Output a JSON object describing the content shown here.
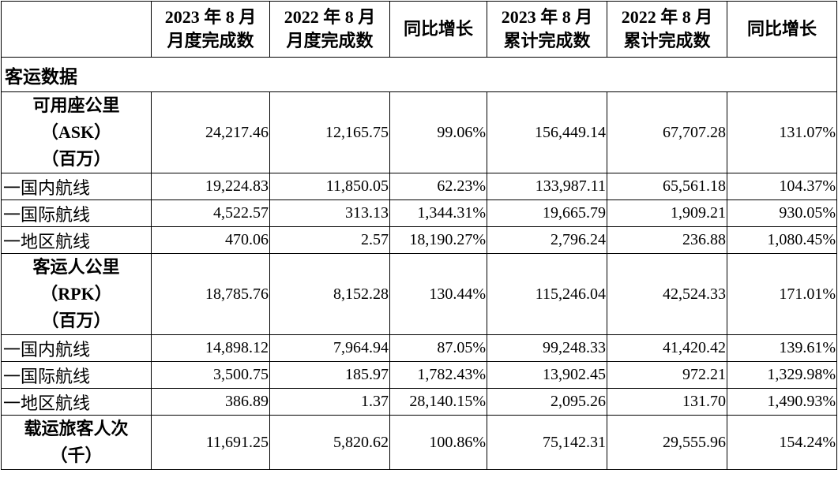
{
  "header": {
    "corner": "",
    "columns": [
      [
        "2023 年 8 月",
        "月度完成数"
      ],
      [
        "2022 年 8 月",
        "月度完成数"
      ],
      [
        "同比增长"
      ],
      [
        "2023 年 8 月",
        "累计完成数"
      ],
      [
        "2022 年 8 月",
        "累计完成数"
      ],
      [
        "同比增长"
      ]
    ]
  },
  "section_title": "客运数据",
  "rows": [
    {
      "label": [
        "可用座公里",
        "（ASK）",
        "（百万）"
      ],
      "values": [
        "24,217.46",
        "12,165.75",
        "99.06%",
        "156,449.14",
        "67,707.28",
        "131.07%"
      ]
    },
    {
      "label": [
        "一国内航线"
      ],
      "values": [
        "19,224.83",
        "11,850.05",
        "62.23%",
        "133,987.11",
        "65,561.18",
        "104.37%"
      ]
    },
    {
      "label": [
        "一国际航线"
      ],
      "values": [
        "4,522.57",
        "313.13",
        "1,344.31%",
        "19,665.79",
        "1,909.21",
        "930.05%"
      ]
    },
    {
      "label": [
        "一地区航线"
      ],
      "values": [
        "470.06",
        "2.57",
        "18,190.27%",
        "2,796.24",
        "236.88",
        "1,080.45%"
      ]
    },
    {
      "label": [
        "客运人公里",
        "（RPK）",
        "（百万）"
      ],
      "values": [
        "18,785.76",
        "8,152.28",
        "130.44%",
        "115,246.04",
        "42,524.33",
        "171.01%"
      ]
    },
    {
      "label": [
        "一国内航线"
      ],
      "values": [
        "14,898.12",
        "7,964.94",
        "87.05%",
        "99,248.33",
        "41,420.42",
        "139.61%"
      ]
    },
    {
      "label": [
        "一国际航线"
      ],
      "values": [
        "3,500.75",
        "185.97",
        "1,782.43%",
        "13,902.45",
        "972.21",
        "1,329.98%"
      ]
    },
    {
      "label": [
        "一地区航线"
      ],
      "values": [
        "386.89",
        "1.37",
        "28,140.15%",
        "2,095.26",
        "131.70",
        "1,490.93%"
      ]
    },
    {
      "label": [
        "载运旅客人次",
        "（千）"
      ],
      "values": [
        "11,691.25",
        "5,820.62",
        "100.86%",
        "75,142.31",
        "29,555.96",
        "154.24%"
      ]
    }
  ]
}
